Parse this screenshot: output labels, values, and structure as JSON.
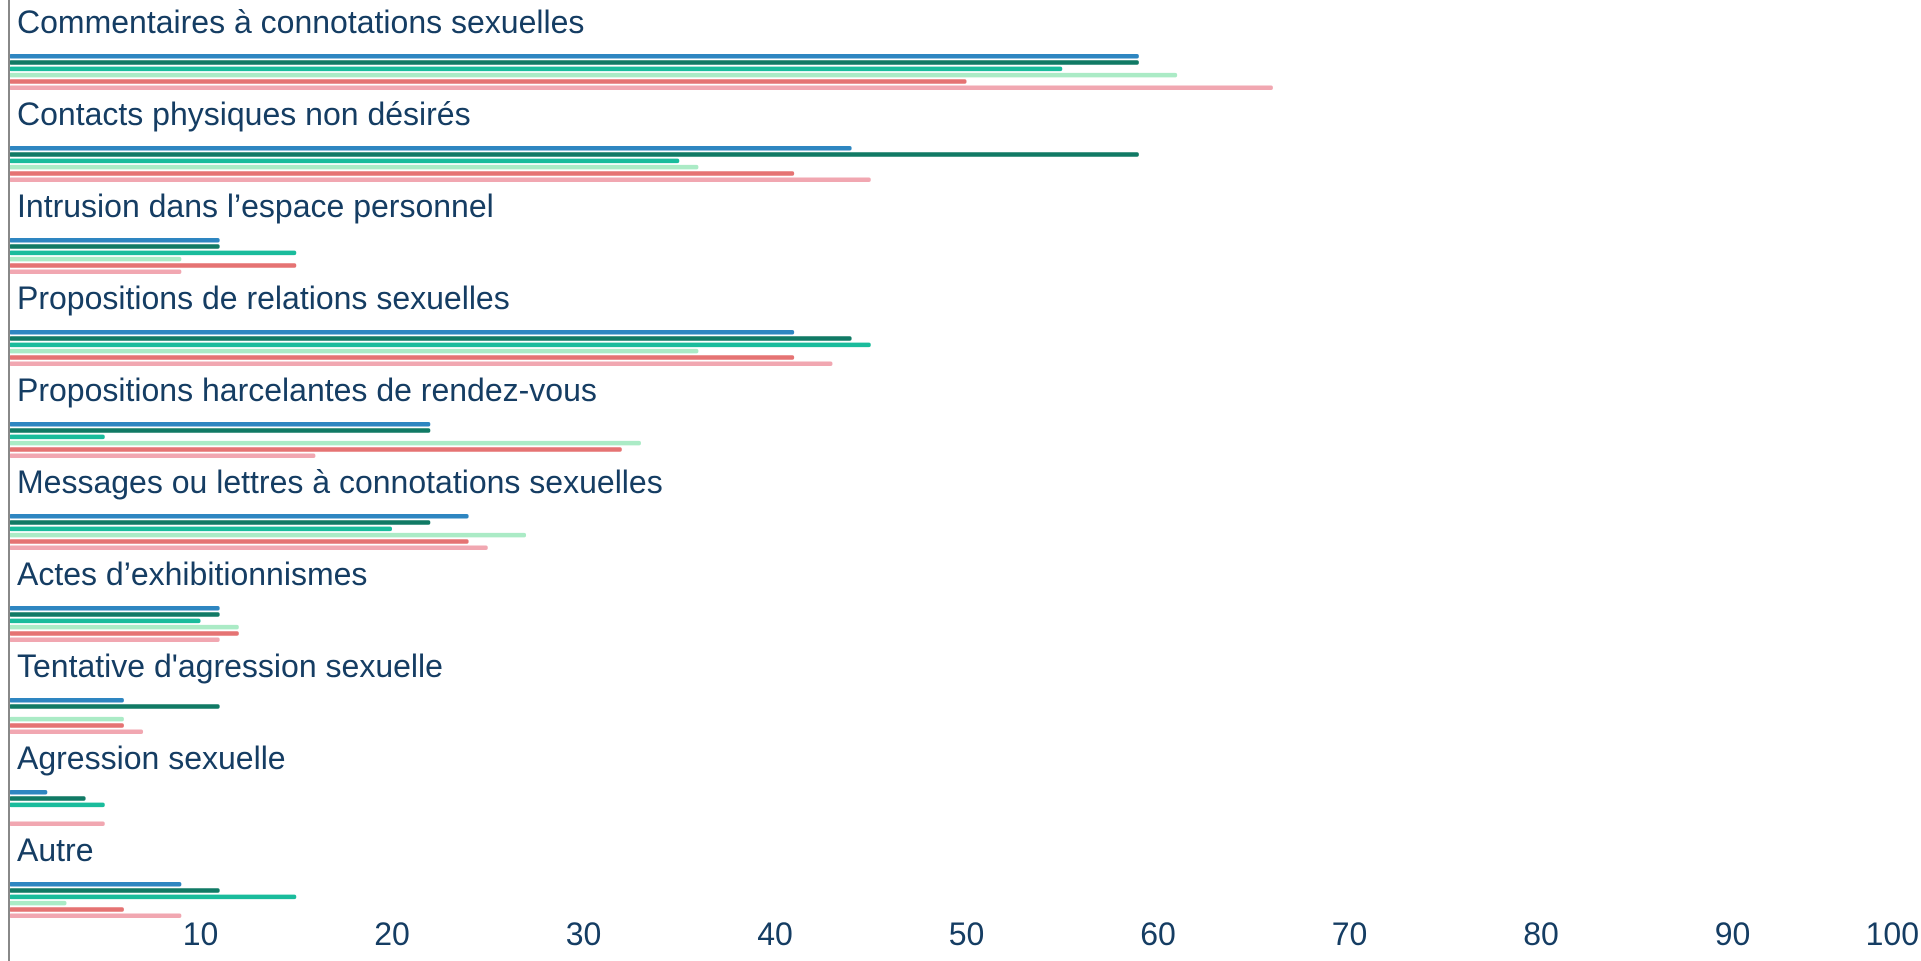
{
  "chart_data": {
    "type": "bar",
    "orientation": "horizontal",
    "grid": false,
    "legend": "none",
    "xlim": [
      0,
      100
    ],
    "x_ticks": [
      10,
      20,
      30,
      40,
      50,
      60,
      70,
      80,
      90,
      100
    ],
    "categories": [
      "Commentaires à connotations sexuelles",
      "Contacts physiques non désirés",
      "Intrusion dans l’espace personnel",
      "Propositions de relations sexuelles",
      "Propositions harcelantes de rendez-vous",
      "Messages ou lettres à connotations sexuelles",
      "Actes d’exhibitionnismes",
      "Tentative d'agression sexuelle",
      "Agression sexuelle",
      "Autre"
    ],
    "series": [
      {
        "color": "#2e86c1",
        "values": [
          59,
          44,
          11,
          41,
          22,
          24,
          11,
          6,
          2,
          9
        ]
      },
      {
        "color": "#117a65",
        "values": [
          59,
          59,
          11,
          44,
          22,
          22,
          11,
          11,
          4,
          11
        ]
      },
      {
        "color": "#1abc9c",
        "values": [
          55,
          35,
          15,
          45,
          5,
          20,
          10,
          0,
          5,
          15
        ]
      },
      {
        "color": "#abebc6",
        "values": [
          61,
          36,
          9,
          36,
          33,
          27,
          12,
          6,
          0,
          3
        ]
      },
      {
        "color": "#e57373",
        "values": [
          50,
          41,
          15,
          41,
          32,
          24,
          12,
          6,
          0,
          6
        ]
      },
      {
        "color": "#f1a7b1",
        "values": [
          66,
          45,
          9,
          43,
          16,
          25,
          11,
          7,
          5,
          9
        ]
      }
    ]
  }
}
